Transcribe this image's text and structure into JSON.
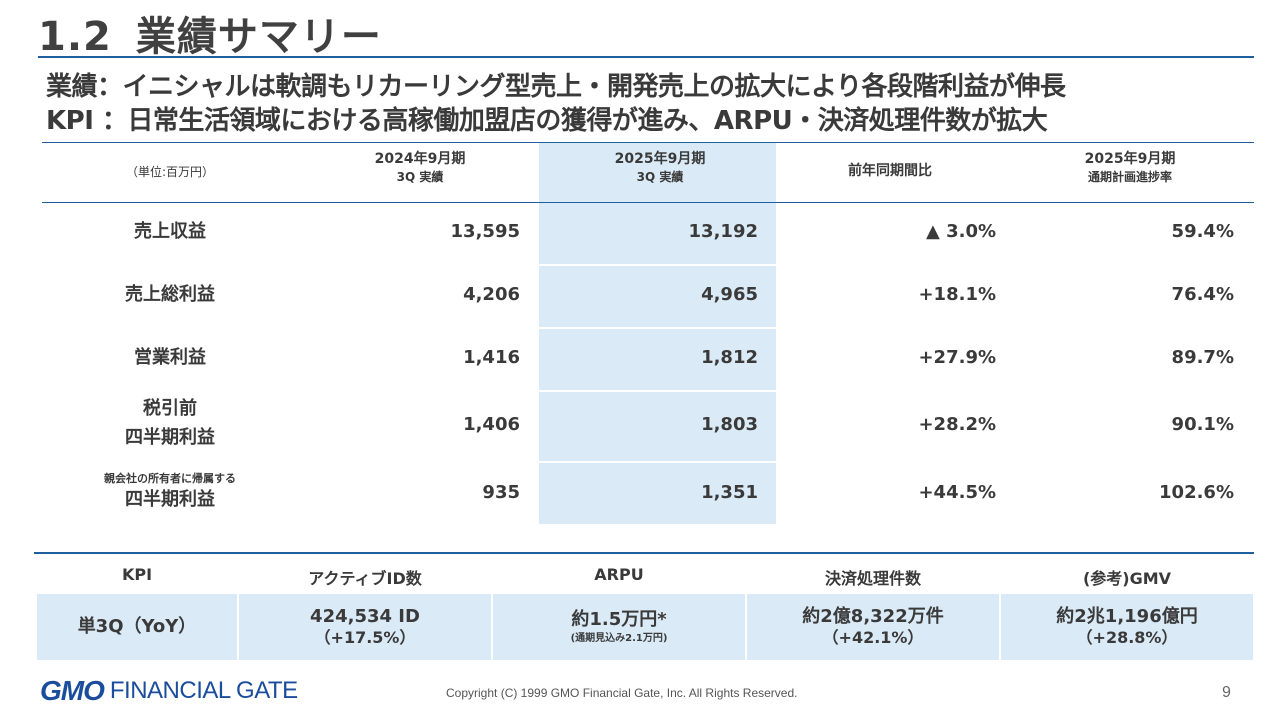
{
  "header": {
    "section_number": "1.2",
    "title": "業績サマリー",
    "subtitle_line1": "業績：イニシャルは軟調もリカーリング型売上・開発売上の拡大により各段階利益が伸長",
    "subtitle_line2": "KPI ：日常生活領域における高稼働加盟店の獲得が進み、ARPU・決済処理件数が拡大"
  },
  "table": {
    "unit_label": "（単位:百万円）",
    "col1_line1": "2024年9月期",
    "col1_line2": "3Q 実績",
    "col2_line1": "2025年9月期",
    "col2_line2": "3Q 実績",
    "col3": "前年同期間比",
    "col4_line1": "2025年9月期",
    "col4_line2": "通期計画進捗率",
    "rows": [
      {
        "label": "売上収益",
        "prev": "13,595",
        "curr": "13,192",
        "yoy": "▲ 3.0%",
        "progress": "59.4%"
      },
      {
        "label": "売上総利益",
        "prev": "4,206",
        "curr": "4,965",
        "yoy": "+18.1%",
        "progress": "76.4%"
      },
      {
        "label": "営業利益",
        "prev": "1,416",
        "curr": "1,812",
        "yoy": "+27.9%",
        "progress": "89.7%"
      },
      {
        "label_line1": "税引前",
        "label_line2": "四半期利益",
        "prev": "1,406",
        "curr": "1,803",
        "yoy": "+28.2%",
        "progress": "90.1%"
      },
      {
        "label_small": "親会社の所有者に帰属する",
        "label_line2": "四半期利益",
        "prev": "935",
        "curr": "1,351",
        "yoy": "+44.5%",
        "progress": "102.6%"
      }
    ]
  },
  "kpi": {
    "headers": [
      "KPI",
      "アクティブID数",
      "ARPU",
      "決済処理件数",
      "(参考)GMV"
    ],
    "row_label": "単3Q（YoY）",
    "active_id_main": "424,534 ID",
    "active_id_sub": "（+17.5%）",
    "arpu_main": "約1.5万円*",
    "arpu_note": "(通期見込み2.1万円)",
    "transactions_main": "約2億8,322万件",
    "transactions_sub": "（+42.1%）",
    "gmv_main": "約2兆1,196億円",
    "gmv_sub": "（+28.8%）"
  },
  "footer": {
    "logo_gmo": "GMO",
    "logo_name": "FINANCIAL GATE",
    "copyright": "Copyright (C) 1999 GMO Financial Gate, Inc. All Rights Reserved.",
    "page_number": "9"
  },
  "colors": {
    "accent_line": "#1f5f9e",
    "highlight": "#dbeaf7",
    "logo": "#1a4d9c"
  }
}
